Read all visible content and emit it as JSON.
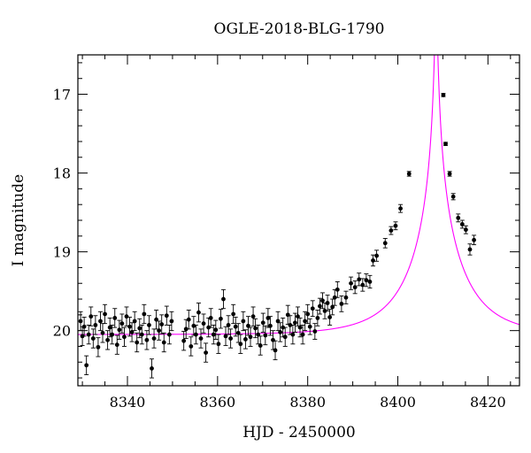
{
  "chart_data": {
    "type": "scatter",
    "title": "OGLE-2018-BLG-1790",
    "xlabel": "HJD - 2450000",
    "ylabel": "I magnitude",
    "xlim": [
      8329,
      8427
    ],
    "ylim": [
      20.7,
      16.5
    ],
    "y_inverted": true,
    "grid": false,
    "legend": "none",
    "xticks": [
      8340,
      8360,
      8380,
      8400,
      8420
    ],
    "yticks": [
      17,
      18,
      19,
      20
    ],
    "colors": {
      "points": "#000000",
      "model": "#ff00ff",
      "frame": "#000000"
    },
    "series": [
      {
        "kind": "points",
        "x": [
          8329.6,
          8330.0,
          8330.4,
          8330.9,
          8331.4,
          8331.9,
          8332.4,
          8332.9,
          8333.5,
          8334.0,
          8334.5,
          8335.0,
          8335.6,
          8336.1,
          8336.6,
          8337.2,
          8337.7,
          8338.2,
          8338.8,
          8339.3,
          8339.8,
          8340.5,
          8341.0,
          8341.6,
          8342.1,
          8342.7,
          8343.2,
          8343.7,
          8344.3,
          8344.8,
          8345.4,
          8345.9,
          8346.4,
          8347.0,
          8347.6,
          8348.1,
          8348.7,
          8349.3,
          8349.8,
          8352.5,
          8353.0,
          8353.6,
          8354.1,
          8354.7,
          8355.2,
          8355.8,
          8356.3,
          8356.9,
          8357.4,
          8358.0,
          8358.5,
          8359.1,
          8359.6,
          8360.2,
          8360.7,
          8361.3,
          8361.8,
          8362.4,
          8362.9,
          8363.5,
          8364.0,
          8364.6,
          8365.1,
          8365.7,
          8366.2,
          8366.8,
          8367.3,
          8367.9,
          8368.4,
          8369.0,
          8369.5,
          8370.1,
          8370.6,
          8371.2,
          8371.7,
          8372.3,
          8372.8,
          8373.4,
          8373.9,
          8374.5,
          8375.0,
          8375.6,
          8376.1,
          8376.7,
          8377.2,
          8377.8,
          8378.3,
          8378.9,
          8379.4,
          8380.0,
          8380.5,
          8381.1,
          8381.6,
          8382.2,
          8382.7,
          8383.3,
          8383.8,
          8384.4,
          8384.9,
          8385.5,
          8386.0,
          8386.6,
          8387.5,
          8388.5,
          8389.6,
          8390.5,
          8391.4,
          8392.2,
          8393.0,
          8393.8,
          8394.5,
          8395.3,
          8397.2,
          8398.5,
          8399.5,
          8400.6,
          8402.5,
          8410.1,
          8410.6,
          8411.5,
          8412.3,
          8413.4,
          8414.3,
          8415.1,
          8416.0,
          8416.9
        ],
        "y": [
          19.88,
          20.07,
          19.95,
          20.44,
          20.05,
          19.82,
          20.1,
          19.93,
          20.21,
          19.88,
          20.03,
          19.79,
          20.12,
          19.96,
          20.05,
          19.84,
          20.18,
          19.99,
          19.91,
          20.08,
          19.82,
          19.95,
          20.02,
          19.88,
          20.15,
          19.97,
          20.05,
          19.79,
          20.12,
          19.93,
          20.48,
          20.1,
          19.86,
          20.0,
          19.92,
          20.15,
          19.81,
          20.05,
          19.88,
          20.13,
          19.98,
          19.86,
          20.2,
          19.94,
          20.05,
          19.77,
          20.1,
          19.91,
          20.28,
          19.96,
          19.84,
          20.05,
          19.99,
          20.17,
          19.85,
          19.6,
          20.07,
          19.93,
          20.1,
          19.79,
          19.95,
          20.03,
          20.17,
          19.88,
          20.11,
          19.94,
          20.08,
          19.82,
          19.97,
          20.05,
          20.19,
          19.9,
          20.06,
          19.84,
          19.94,
          20.12,
          20.25,
          19.88,
          20.02,
          19.96,
          20.08,
          19.8,
          19.93,
          20.05,
          19.9,
          19.82,
          19.96,
          20.05,
          19.88,
          19.79,
          19.95,
          19.72,
          20.01,
          19.84,
          19.69,
          19.62,
          19.75,
          19.65,
          19.83,
          19.7,
          19.58,
          19.48,
          19.66,
          19.58,
          19.4,
          19.45,
          19.35,
          19.42,
          19.36,
          19.38,
          19.11,
          19.05,
          18.89,
          18.73,
          18.67,
          18.45,
          18.01,
          17.01,
          17.63,
          18.01,
          18.3,
          18.57,
          18.65,
          18.72,
          18.97,
          18.85
        ],
        "yerr": [
          0.12,
          0.12,
          0.12,
          0.12,
          0.12,
          0.12,
          0.12,
          0.12,
          0.12,
          0.12,
          0.12,
          0.12,
          0.12,
          0.12,
          0.12,
          0.12,
          0.12,
          0.12,
          0.12,
          0.12,
          0.12,
          0.12,
          0.12,
          0.12,
          0.12,
          0.12,
          0.12,
          0.12,
          0.12,
          0.12,
          0.12,
          0.12,
          0.12,
          0.12,
          0.12,
          0.12,
          0.12,
          0.12,
          0.12,
          0.12,
          0.12,
          0.12,
          0.12,
          0.12,
          0.12,
          0.12,
          0.12,
          0.12,
          0.12,
          0.12,
          0.12,
          0.12,
          0.12,
          0.12,
          0.12,
          0.12,
          0.12,
          0.12,
          0.12,
          0.12,
          0.12,
          0.12,
          0.12,
          0.12,
          0.12,
          0.12,
          0.12,
          0.12,
          0.12,
          0.12,
          0.12,
          0.12,
          0.12,
          0.12,
          0.12,
          0.12,
          0.12,
          0.12,
          0.12,
          0.12,
          0.12,
          0.12,
          0.12,
          0.12,
          0.12,
          0.12,
          0.12,
          0.12,
          0.12,
          0.12,
          0.1,
          0.1,
          0.1,
          0.1,
          0.1,
          0.1,
          0.1,
          0.1,
          0.1,
          0.1,
          0.1,
          0.1,
          0.1,
          0.08,
          0.08,
          0.08,
          0.08,
          0.08,
          0.08,
          0.08,
          0.07,
          0.07,
          0.06,
          0.05,
          0.05,
          0.05,
          0.03,
          0.02,
          0.02,
          0.03,
          0.04,
          0.05,
          0.05,
          0.05,
          0.07,
          0.06
        ]
      },
      {
        "kind": "model-curve",
        "base_mag": 20.05,
        "t0": 8408.5,
        "tE": 12.0,
        "u0": 0.02
      }
    ]
  }
}
